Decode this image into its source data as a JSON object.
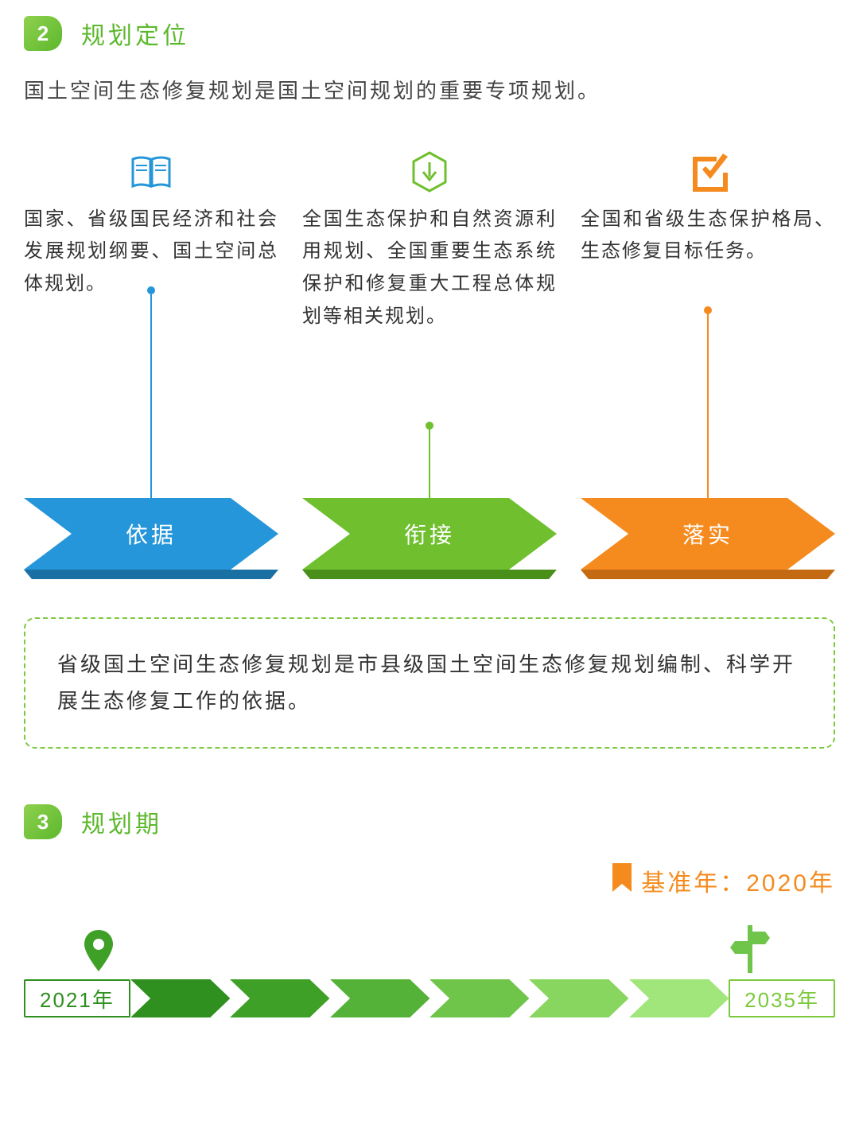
{
  "section2": {
    "badge": "2",
    "title": "规划定位",
    "intro": "国土空间生态修复规划是国土空间规划的重要专项规划。",
    "columns": [
      {
        "icon": "book",
        "icon_color": "#2596d9",
        "text": "国家、省级国民经济和社会发展规划纲要、国土空间总体规划。",
        "connector_color": "#2596d9",
        "connector_height": 260,
        "arrow_label": "依据",
        "arrow_fill": "#2596d9",
        "arrow_shadow": "#1a6fa3"
      },
      {
        "icon": "hex-down",
        "icon_color": "#6fbf2e",
        "text": "全国生态保护和自然资源利用规划、全国重要生态系统保护和修复重大工程总体规划等相关规划。",
        "connector_color": "#6fbf2e",
        "connector_height": 90,
        "arrow_label": "衔接",
        "arrow_fill": "#6fbf2e",
        "arrow_shadow": "#4a8f1a"
      },
      {
        "icon": "check",
        "icon_color": "#f58b1f",
        "text": "全国和省级生态保护格局、生态修复目标任务。",
        "connector_color": "#f58b1f",
        "connector_height": 235,
        "arrow_label": "落实",
        "arrow_fill": "#f58b1f",
        "arrow_shadow": "#c46a12"
      }
    ],
    "note": "省级国土空间生态修复规划是市县级国土空间生态修复规划编制、科学开展生态修复工作的依据。",
    "note_border": "#7cc93e"
  },
  "section3": {
    "badge": "3",
    "title": "规划期",
    "baseline_label": "基准年：2020年",
    "baseline_color": "#f58b1f",
    "timeline": {
      "start_label": "2021年",
      "start_color": "#2f8f1f",
      "end_label": "2035年",
      "end_color": "#7cc93e",
      "chevron_colors": [
        "#2f8f1f",
        "#3fa028",
        "#55b238",
        "#6fc54a",
        "#88d65f",
        "#a1e67a"
      ],
      "pin_color": "#3fa028",
      "sign_color": "#6fc54a"
    }
  }
}
